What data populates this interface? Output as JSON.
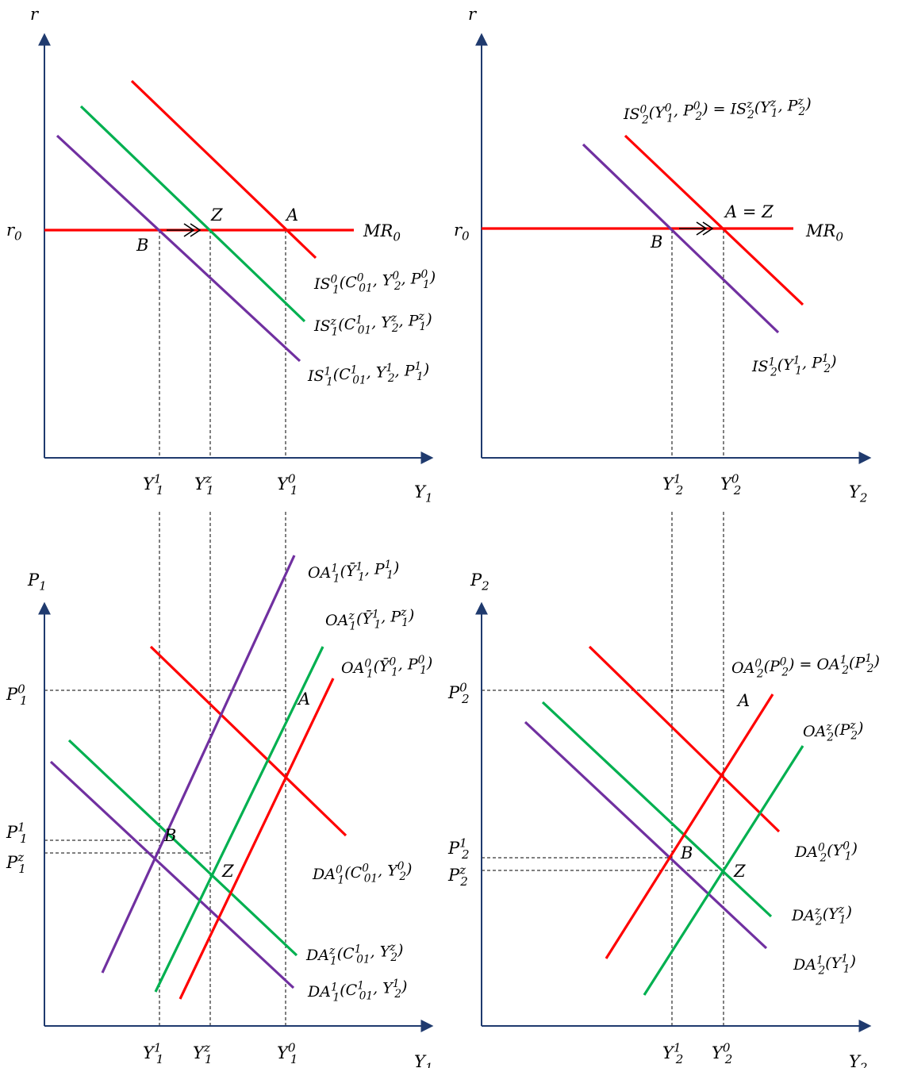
{
  "colors": {
    "red": "#ff0000",
    "green": "#00b050",
    "purple": "#7030a0",
    "axis": "#1f3a6e"
  },
  "panels": {
    "top_left": {
      "y_axis": "r",
      "x_axis": [
        "Y",
        "1",
        ""
      ],
      "r_level": [
        "r",
        "0",
        ""
      ],
      "mr": [
        "MR",
        "0",
        ""
      ],
      "points": {
        "a": "A",
        "z": "Z",
        "b": "B"
      },
      "ticks": [
        [
          "Y",
          "1",
          "1"
        ],
        [
          "Y",
          "1",
          "z"
        ],
        [
          "Y",
          "1",
          "0"
        ]
      ],
      "curves": [
        [
          [
            "IS",
            "1",
            "0"
          ],
          "(",
          [
            "C",
            "01",
            "0"
          ],
          ", ",
          [
            "Y",
            "2",
            "0"
          ],
          ", ",
          [
            "P",
            "1",
            "0"
          ],
          ")"
        ],
        [
          [
            "IS",
            "1",
            "z"
          ],
          "(",
          [
            "C",
            "01",
            "1"
          ],
          ", ",
          [
            "Y",
            "2",
            "z"
          ],
          ", ",
          [
            "P",
            "1",
            "z"
          ],
          ")"
        ],
        [
          [
            "IS",
            "1",
            "1"
          ],
          "(",
          [
            "C",
            "01",
            "1"
          ],
          ", ",
          [
            "Y",
            "2",
            "1"
          ],
          ", ",
          [
            "P",
            "1",
            "1"
          ],
          ")"
        ]
      ]
    },
    "top_right": {
      "y_axis": "r",
      "x_axis": [
        "Y",
        "2",
        ""
      ],
      "r_level": [
        "r",
        "0",
        ""
      ],
      "mr": [
        "MR",
        "0",
        ""
      ],
      "points": {
        "az": "A = Z",
        "b": "B"
      },
      "ticks": [
        [
          "Y",
          "2",
          "1"
        ],
        [
          "Y",
          "2",
          "0"
        ]
      ],
      "curves": [
        [
          [
            "IS",
            "2",
            "0"
          ],
          "(",
          [
            "Y",
            "1",
            "0"
          ],
          ", ",
          [
            "P",
            "2",
            "0"
          ],
          ") = ",
          [
            "IS",
            "2",
            "z"
          ],
          "(",
          [
            "Y",
            "1",
            "z"
          ],
          ", ",
          [
            "P",
            "2",
            "z"
          ],
          ")"
        ],
        [
          [
            "IS",
            "2",
            "1"
          ],
          "(",
          [
            "Y",
            "1",
            "1"
          ],
          ", ",
          [
            "P",
            "2",
            "1"
          ],
          ")"
        ]
      ]
    },
    "bottom_left": {
      "y_axis": [
        "P",
        "1",
        ""
      ],
      "x_axis": [
        "Y",
        "1",
        ""
      ],
      "price_levels": [
        [
          "P",
          "1",
          "0"
        ],
        [
          "P",
          "1",
          "1"
        ],
        [
          "P",
          "1",
          "z"
        ]
      ],
      "points": {
        "a": "A",
        "b": "B",
        "z": "Z"
      },
      "ticks": [
        [
          "Y",
          "1",
          "1"
        ],
        [
          "Y",
          "1",
          "z"
        ],
        [
          "Y",
          "1",
          "0"
        ]
      ],
      "oa_curves": [
        [
          [
            "OA",
            "1",
            "1"
          ],
          "(",
          [
            "Ȳ",
            "1",
            "1"
          ],
          ", ",
          [
            "P",
            "1",
            "1"
          ],
          ")"
        ],
        [
          [
            "OA",
            "1",
            "z"
          ],
          "(",
          [
            "Ȳ",
            "1",
            "1"
          ],
          ", ",
          [
            "P",
            "1",
            "z"
          ],
          ")"
        ],
        [
          [
            "OA",
            "1",
            "0"
          ],
          "(",
          [
            "Ȳ",
            "1",
            "0"
          ],
          ", ",
          [
            "P",
            "1",
            "0"
          ],
          ")"
        ]
      ],
      "da_curves": [
        [
          [
            "DA",
            "1",
            "0"
          ],
          "(",
          [
            "C",
            "01",
            "0"
          ],
          ", ",
          [
            "Y",
            "2",
            "0"
          ],
          ")"
        ],
        [
          [
            "DA",
            "1",
            "z"
          ],
          "(",
          [
            "C",
            "01",
            "1"
          ],
          ", ",
          [
            "Y",
            "2",
            "z"
          ],
          ")"
        ],
        [
          [
            "DA",
            "1",
            "1"
          ],
          "(",
          [
            "C",
            "01",
            "1"
          ],
          ", ",
          [
            "Y",
            "2",
            "1"
          ],
          ")"
        ]
      ]
    },
    "bottom_right": {
      "y_axis": [
        "P",
        "2",
        ""
      ],
      "x_axis": [
        "Y",
        "2",
        ""
      ],
      "price_levels": [
        [
          "P",
          "2",
          "0"
        ],
        [
          "P",
          "2",
          "1"
        ],
        [
          "P",
          "2",
          "z"
        ]
      ],
      "points": {
        "a": "A",
        "b": "B",
        "z": "Z"
      },
      "ticks": [
        [
          "Y",
          "2",
          "1"
        ],
        [
          "Y",
          "2",
          "0"
        ]
      ],
      "oa_curves": [
        [
          [
            "OA",
            "2",
            "0"
          ],
          "(",
          [
            "P",
            "2",
            "0"
          ],
          ") = ",
          [
            "OA",
            "2",
            "1"
          ],
          "(",
          [
            "P",
            "2",
            "1"
          ],
          ")"
        ],
        [
          [
            "OA",
            "2",
            "z"
          ],
          "(",
          [
            "P",
            "2",
            "z"
          ],
          ")"
        ]
      ],
      "da_curves": [
        [
          [
            "DA",
            "2",
            "0"
          ],
          "(",
          [
            "Y",
            "1",
            "0"
          ],
          ")"
        ],
        [
          [
            "DA",
            "2",
            "z"
          ],
          "(",
          [
            "Y",
            "1",
            "z"
          ],
          ")"
        ],
        [
          [
            "DA",
            "2",
            "1"
          ],
          "(",
          [
            "Y",
            "1",
            "1"
          ],
          ")"
        ]
      ]
    }
  }
}
